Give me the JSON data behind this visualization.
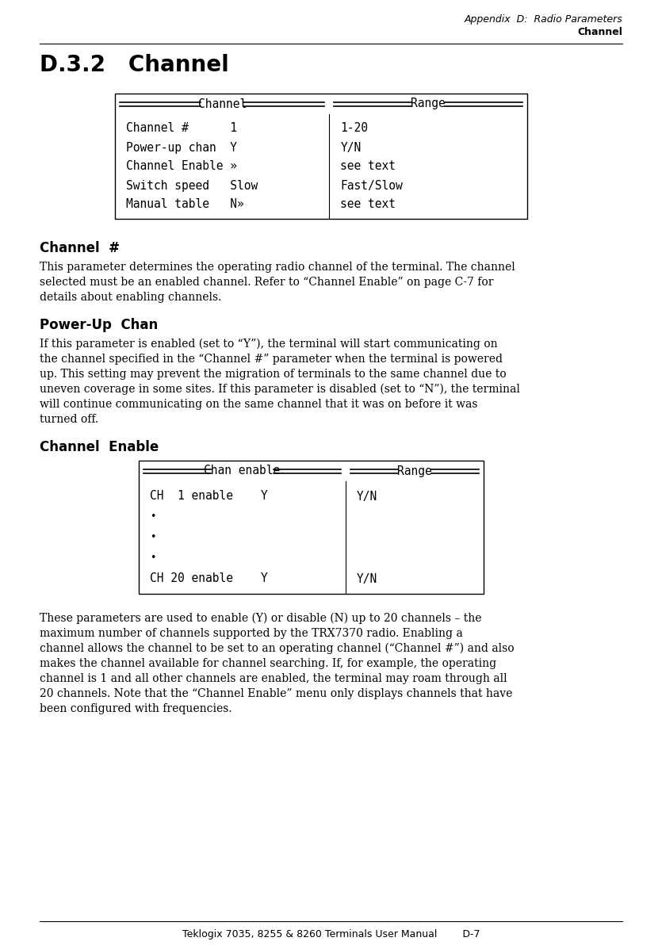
{
  "page_header_line1": "Appendix  D:  Radio Parameters",
  "page_header_line2": "Channel",
  "section_title": "D.3.2   Channel",
  "table1_header_left": "Channel",
  "table1_header_right": "Range",
  "table1_rows_left": [
    "Channel #      1",
    "Power-up chan  Y",
    "Channel Enable »",
    "Switch speed   Slow",
    "Manual table   N»"
  ],
  "table1_rows_right": [
    "1-20",
    "Y/N",
    "see text",
    "Fast/Slow",
    "see text"
  ],
  "section2_title": "Channel  #",
  "section2_body": [
    "This parameter determines the operating radio channel of the terminal. The channel",
    "selected must be an enabled channel. Refer to “Channel Enable” on page C-7 for",
    "details about enabling channels."
  ],
  "section3_title": "Power-Up  Chan",
  "section3_body": [
    "If this parameter is enabled (set to “Y”), the terminal will start communicating on",
    "the channel specified in the “Channel #” parameter when the terminal is powered",
    "up. This setting may prevent the migration of terminals to the same channel due to",
    "uneven coverage in some sites. If this parameter is disabled (set to “N”), the terminal",
    "will continue communicating on the same channel that it was on before it was",
    "turned off."
  ],
  "section4_title": "Channel  Enable",
  "table2_header_left": "Chan enable",
  "table2_header_right": "Range",
  "table2_rows_left": [
    "CH  1 enable    Y",
    "•",
    "•",
    "•",
    "CH 20 enable    Y"
  ],
  "table2_rows_right": [
    "Y/N",
    "",
    "",
    "",
    "Y/N"
  ],
  "section4_body": [
    "These parameters are used to enable (Y) or disable (N) up to 20 channels – the",
    "maximum number of channels supported by the TRX7370 radio. Enabling a",
    "channel allows the channel to be set to an operating channel (“Channel #”) and also",
    "makes the channel available for channel searching. If, for example, the operating",
    "channel is 1 and all other channels are enabled, the terminal may roam through all",
    "20 channels. Note that the “Channel Enable” menu only displays channels that have",
    "been configured with frequencies."
  ],
  "footer": "Teklogix 7035, 8255 & 8260 Terminals User Manual        D-7",
  "bg_color": "#ffffff"
}
